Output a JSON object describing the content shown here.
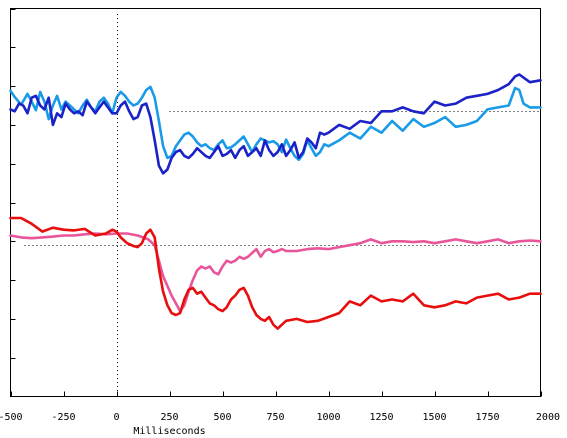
{
  "chart_data": {
    "type": "line",
    "xlabel": "Milliseconds",
    "xlim": [
      -500,
      2000
    ],
    "xticks": [
      -500,
      -250,
      0,
      250,
      500,
      750,
      1000,
      1250,
      1500,
      1750,
      2000
    ],
    "xtick_labels": [
      "-500",
      "-250",
      "0",
      "250",
      "500",
      "750",
      "1000",
      "1250",
      "1500",
      "1750",
      "2000"
    ],
    "ylim": [
      0,
      10
    ],
    "yticks": [
      1,
      2,
      3,
      4,
      5,
      6,
      7,
      8,
      9,
      10
    ],
    "baselines": [
      7.37,
      3.9
    ],
    "grid": false,
    "legend": "none",
    "series": [
      {
        "color": "#1a9be8",
        "x": [
          -500,
          -480,
          -450,
          -420,
          -400,
          -380,
          -360,
          -340,
          -320,
          -300,
          -280,
          -260,
          -240,
          -220,
          -200,
          -180,
          -160,
          -140,
          -120,
          -100,
          -80,
          -60,
          -40,
          -20,
          0,
          20,
          40,
          60,
          80,
          100,
          120,
          140,
          160,
          180,
          200,
          220,
          240,
          260,
          280,
          300,
          320,
          340,
          360,
          380,
          400,
          420,
          440,
          460,
          480,
          500,
          520,
          540,
          560,
          580,
          600,
          620,
          640,
          660,
          680,
          700,
          720,
          740,
          760,
          780,
          800,
          820,
          840,
          860,
          880,
          900,
          920,
          940,
          960,
          980,
          1000,
          1050,
          1100,
          1150,
          1200,
          1250,
          1300,
          1350,
          1400,
          1450,
          1500,
          1550,
          1600,
          1650,
          1700,
          1750,
          1800,
          1850,
          1880,
          1900,
          1920,
          1950,
          2000
        ],
        "y": [
          7.88,
          7.72,
          7.52,
          7.8,
          7.6,
          7.38,
          7.85,
          7.6,
          7.15,
          7.5,
          7.75,
          7.4,
          7.6,
          7.5,
          7.4,
          7.3,
          7.5,
          7.65,
          7.45,
          7.35,
          7.6,
          7.7,
          7.55,
          7.3,
          7.7,
          7.85,
          7.75,
          7.6,
          7.5,
          7.55,
          7.7,
          7.9,
          7.98,
          7.7,
          7.1,
          6.45,
          6.15,
          6.2,
          6.45,
          6.6,
          6.75,
          6.8,
          6.7,
          6.55,
          6.45,
          6.5,
          6.4,
          6.35,
          6.5,
          6.6,
          6.4,
          6.42,
          6.5,
          6.6,
          6.7,
          6.5,
          6.3,
          6.5,
          6.65,
          6.6,
          6.55,
          6.58,
          6.5,
          6.3,
          6.62,
          6.4,
          6.2,
          6.1,
          6.25,
          6.6,
          6.4,
          6.2,
          6.3,
          6.5,
          6.45,
          6.6,
          6.8,
          6.65,
          6.95,
          6.8,
          7.1,
          6.85,
          7.15,
          6.95,
          7.05,
          7.2,
          6.95,
          7.0,
          7.1,
          7.4,
          7.45,
          7.5,
          7.95,
          7.9,
          7.55,
          7.45,
          7.45
        ]
      },
      {
        "color": "#1a22c8",
        "x": [
          -500,
          -480,
          -460,
          -440,
          -420,
          -400,
          -380,
          -360,
          -340,
          -320,
          -300,
          -280,
          -260,
          -240,
          -220,
          -200,
          -180,
          -160,
          -140,
          -120,
          -100,
          -80,
          -60,
          -40,
          -20,
          0,
          20,
          40,
          60,
          80,
          100,
          120,
          140,
          160,
          180,
          200,
          220,
          240,
          260,
          280,
          300,
          320,
          340,
          360,
          380,
          400,
          420,
          440,
          460,
          480,
          500,
          520,
          540,
          560,
          580,
          600,
          620,
          640,
          660,
          680,
          700,
          720,
          740,
          760,
          780,
          800,
          820,
          840,
          860,
          880,
          900,
          920,
          940,
          960,
          980,
          1000,
          1050,
          1100,
          1150,
          1200,
          1250,
          1300,
          1350,
          1400,
          1450,
          1500,
          1550,
          1600,
          1650,
          1700,
          1750,
          1800,
          1850,
          1880,
          1900,
          1950,
          2000
        ],
        "y": [
          7.4,
          7.35,
          7.55,
          7.5,
          7.3,
          7.7,
          7.75,
          7.5,
          7.4,
          7.7,
          7.0,
          7.3,
          7.2,
          7.55,
          7.4,
          7.3,
          7.35,
          7.25,
          7.6,
          7.45,
          7.3,
          7.45,
          7.6,
          7.45,
          7.3,
          7.3,
          7.5,
          7.6,
          7.35,
          7.15,
          7.2,
          7.5,
          7.55,
          7.2,
          6.6,
          5.95,
          5.75,
          5.85,
          6.15,
          6.3,
          6.35,
          6.2,
          6.15,
          6.25,
          6.4,
          6.3,
          6.2,
          6.15,
          6.3,
          6.45,
          6.2,
          6.25,
          6.35,
          6.15,
          6.35,
          6.45,
          6.2,
          6.3,
          6.4,
          6.2,
          6.6,
          6.35,
          6.2,
          6.3,
          6.5,
          6.2,
          6.35,
          6.55,
          6.15,
          6.3,
          6.65,
          6.55,
          6.4,
          6.8,
          6.75,
          6.8,
          7.0,
          6.9,
          7.1,
          7.05,
          7.35,
          7.35,
          7.45,
          7.35,
          7.3,
          7.6,
          7.5,
          7.55,
          7.7,
          7.75,
          7.8,
          7.9,
          8.05,
          8.25,
          8.3,
          8.1,
          8.15
        ]
      },
      {
        "color": "#e8559a",
        "x": [
          -500,
          -450,
          -400,
          -350,
          -300,
          -250,
          -200,
          -150,
          -100,
          -50,
          0,
          50,
          100,
          150,
          180,
          200,
          220,
          240,
          260,
          280,
          300,
          320,
          340,
          360,
          380,
          400,
          420,
          440,
          460,
          480,
          500,
          520,
          540,
          560,
          580,
          600,
          620,
          640,
          660,
          680,
          700,
          720,
          740,
          760,
          780,
          800,
          850,
          900,
          950,
          1000,
          1050,
          1100,
          1150,
          1200,
          1250,
          1300,
          1350,
          1400,
          1450,
          1500,
          1550,
          1600,
          1650,
          1700,
          1750,
          1800,
          1850,
          1900,
          1950,
          2000
        ],
        "y": [
          4.15,
          4.1,
          4.08,
          4.1,
          4.12,
          4.15,
          4.15,
          4.18,
          4.2,
          4.18,
          4.2,
          4.2,
          4.15,
          4.05,
          3.9,
          3.5,
          3.1,
          2.85,
          2.6,
          2.4,
          2.2,
          2.35,
          2.7,
          3.0,
          3.25,
          3.35,
          3.3,
          3.35,
          3.2,
          3.15,
          3.35,
          3.5,
          3.45,
          3.5,
          3.6,
          3.55,
          3.6,
          3.7,
          3.8,
          3.6,
          3.75,
          3.8,
          3.72,
          3.75,
          3.8,
          3.75,
          3.75,
          3.8,
          3.82,
          3.8,
          3.85,
          3.9,
          3.95,
          4.05,
          3.95,
          4.0,
          4.0,
          3.98,
          4.0,
          3.95,
          4.0,
          4.05,
          4.0,
          3.95,
          4.0,
          4.05,
          3.95,
          4.0,
          4.02,
          4.0
        ]
      },
      {
        "color": "#e80e0e",
        "x": [
          -500,
          -450,
          -400,
          -350,
          -300,
          -250,
          -200,
          -150,
          -100,
          -50,
          -20,
          0,
          20,
          50,
          80,
          100,
          120,
          140,
          160,
          180,
          200,
          220,
          240,
          260,
          280,
          300,
          320,
          340,
          360,
          380,
          400,
          420,
          440,
          460,
          480,
          500,
          520,
          540,
          560,
          580,
          600,
          620,
          640,
          660,
          680,
          700,
          720,
          740,
          760,
          780,
          800,
          850,
          900,
          950,
          1000,
          1050,
          1100,
          1150,
          1200,
          1250,
          1300,
          1350,
          1400,
          1450,
          1500,
          1550,
          1600,
          1650,
          1700,
          1750,
          1800,
          1850,
          1900,
          1950,
          2000
        ],
        "y": [
          4.6,
          4.6,
          4.45,
          4.25,
          4.35,
          4.3,
          4.28,
          4.32,
          4.15,
          4.2,
          4.3,
          4.25,
          4.1,
          3.95,
          3.88,
          3.85,
          3.95,
          4.2,
          4.3,
          4.1,
          3.3,
          2.7,
          2.35,
          2.15,
          2.1,
          2.15,
          2.5,
          2.75,
          2.8,
          2.65,
          2.7,
          2.55,
          2.4,
          2.35,
          2.25,
          2.2,
          2.3,
          2.5,
          2.6,
          2.75,
          2.8,
          2.6,
          2.3,
          2.1,
          2.0,
          1.95,
          2.05,
          1.85,
          1.75,
          1.85,
          1.95,
          2.0,
          1.92,
          1.95,
          2.05,
          2.15,
          2.45,
          2.35,
          2.6,
          2.45,
          2.5,
          2.45,
          2.65,
          2.35,
          2.3,
          2.35,
          2.45,
          2.4,
          2.55,
          2.6,
          2.65,
          2.5,
          2.55,
          2.65,
          2.65
        ]
      }
    ]
  }
}
